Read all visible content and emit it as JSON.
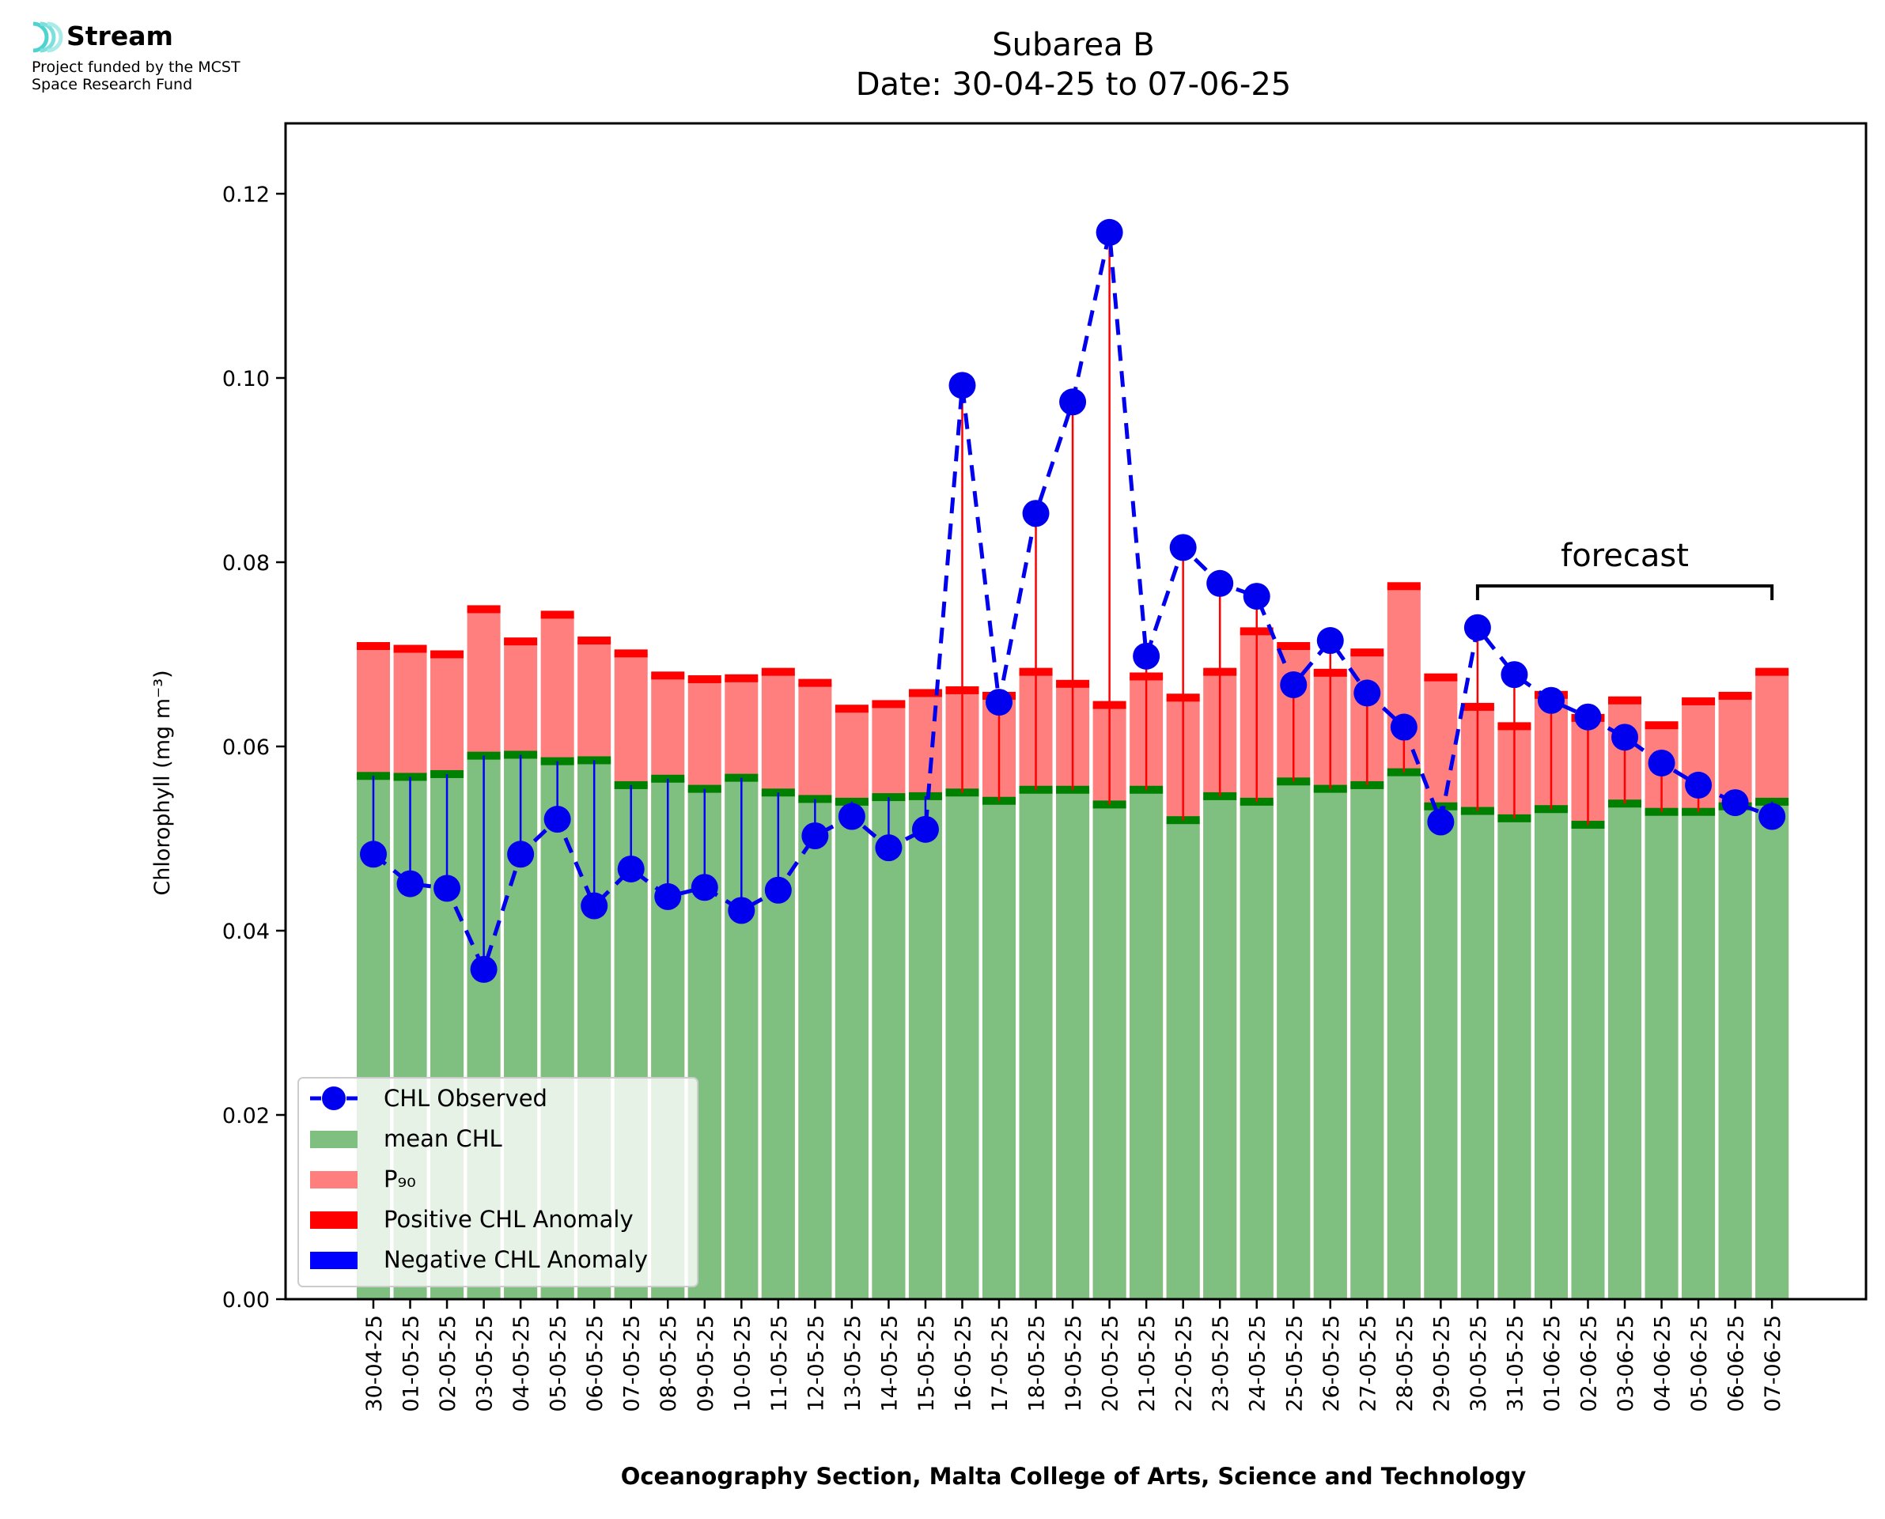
{
  "logo": {
    "name": "Stream",
    "line1": "Project funded by the MCST",
    "line2": "Space Research Fund"
  },
  "chart_data": {
    "type": "bar",
    "title": "Subarea B",
    "subtitle": "Date: 30-04-25 to 07-06-25",
    "xlabel": "Oceanography Section, Malta College of Arts, Science and Technology",
    "ylabel": "Chlorophyll (mg m⁻³)",
    "ylim": [
      0,
      0.1275
    ],
    "yticks": [
      "0.00",
      "0.02",
      "0.04",
      "0.06",
      "0.08",
      "0.10",
      "0.12"
    ],
    "grid": false,
    "legend_position": "lower-left",
    "categories": [
      "30-04-25",
      "01-05-25",
      "02-05-25",
      "03-05-25",
      "04-05-25",
      "05-05-25",
      "06-05-25",
      "07-05-25",
      "08-05-25",
      "09-05-25",
      "10-05-25",
      "11-05-25",
      "12-05-25",
      "13-05-25",
      "14-05-25",
      "15-05-25",
      "16-05-25",
      "17-05-25",
      "18-05-25",
      "19-05-25",
      "20-05-25",
      "21-05-25",
      "22-05-25",
      "23-05-25",
      "24-05-25",
      "25-05-25",
      "26-05-25",
      "27-05-25",
      "28-05-25",
      "29-05-25",
      "30-05-25",
      "31-05-25",
      "01-06-25",
      "02-06-25",
      "03-06-25",
      "04-06-25",
      "05-06-25",
      "06-06-25",
      "07-06-25"
    ],
    "series": [
      {
        "name": "CHL Observed",
        "color": "#0000ee",
        "style": "dashed line with circle markers",
        "values": [
          0.0483,
          0.0451,
          0.0446,
          0.0358,
          0.0483,
          0.0521,
          0.0427,
          0.0467,
          0.0437,
          0.0447,
          0.0422,
          0.0444,
          0.0503,
          0.0524,
          0.049,
          0.051,
          0.0992,
          0.0648,
          0.0853,
          0.0974,
          0.1158,
          0.0698,
          0.0816,
          0.0777,
          0.0763,
          0.0667,
          0.0715,
          0.0658,
          0.0621,
          0.0518,
          0.0729,
          0.0678,
          0.065,
          0.0632,
          0.061,
          0.0582,
          0.0558,
          0.0539,
          0.0524
        ]
      },
      {
        "name": "mean CHL",
        "color": "#7fbf7f",
        "values": [
          0.0568,
          0.0567,
          0.057,
          0.059,
          0.0591,
          0.0584,
          0.0585,
          0.0558,
          0.0565,
          0.0554,
          0.0566,
          0.055,
          0.0543,
          0.054,
          0.0545,
          0.0546,
          0.055,
          0.0541,
          0.0553,
          0.0553,
          0.0537,
          0.0553,
          0.052,
          0.0546,
          0.054,
          0.0562,
          0.0554,
          0.0558,
          0.0572,
          0.0535,
          0.053,
          0.0522,
          0.0532,
          0.0515,
          0.0538,
          0.0529,
          0.0529,
          0.0535,
          0.054
        ]
      },
      {
        "name": "P₉₀",
        "color": "#ff7f7f",
        "values": [
          0.0709,
          0.0706,
          0.07,
          0.0749,
          0.0714,
          0.0743,
          0.0715,
          0.0701,
          0.0677,
          0.0673,
          0.0674,
          0.0681,
          0.0669,
          0.0641,
          0.0646,
          0.0658,
          0.0661,
          0.0655,
          0.0681,
          0.0668,
          0.0645,
          0.0676,
          0.0653,
          0.0681,
          0.0725,
          0.0709,
          0.068,
          0.0702,
          0.0774,
          0.0675,
          0.0643,
          0.0622,
          0.0656,
          0.0631,
          0.065,
          0.0623,
          0.0649,
          0.0655,
          0.0681
        ]
      },
      {
        "name": "Positive CHL Anomaly",
        "color": "#ff0000"
      },
      {
        "name": "Negative CHL Anomaly",
        "color": "#0000ff"
      }
    ],
    "annotations": [
      {
        "text": "forecast",
        "from": "30-05-25",
        "to": "07-06-25"
      }
    ]
  }
}
